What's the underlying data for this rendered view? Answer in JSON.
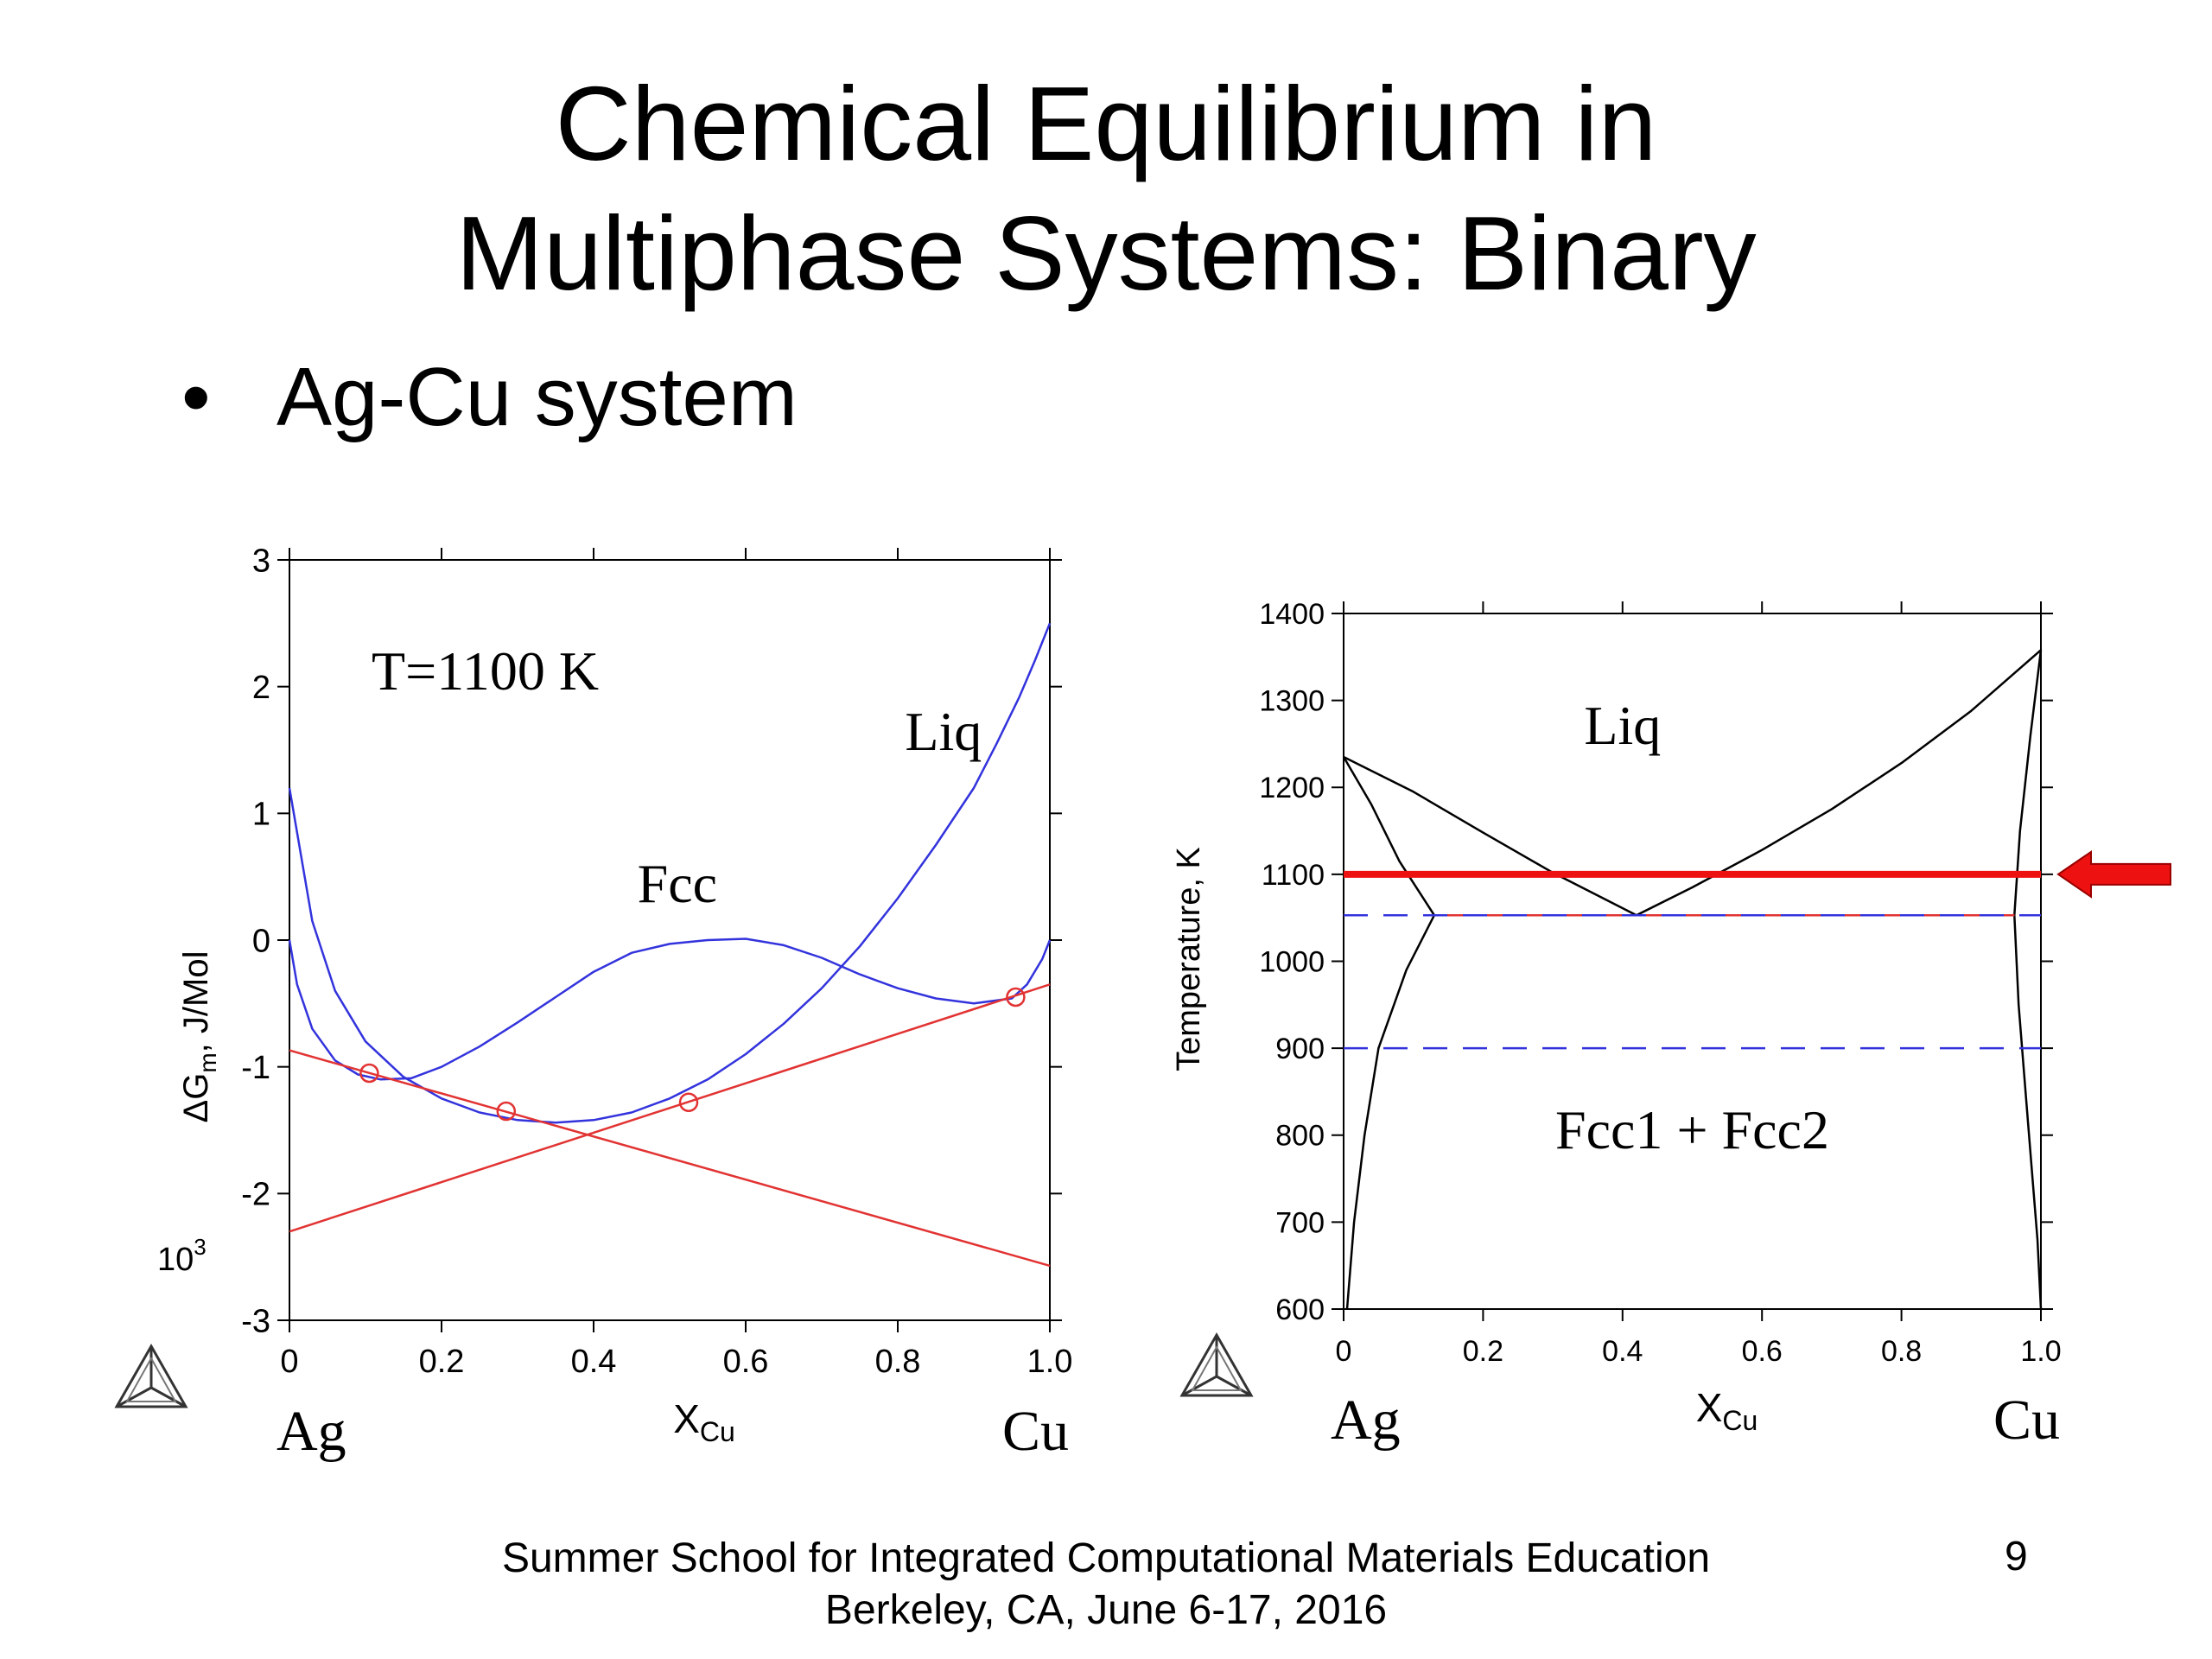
{
  "slide": {
    "title_line1": "Chemical Equilibrium in",
    "title_line2": "Multiphase Systems: Binary",
    "bullet_marker": "•",
    "bullet": "Ag-Cu system",
    "footer_line1": "Summer School for Integrated Computational Materials Education",
    "footer_line2": "Berkeley, CA, June 6-17, 2016",
    "page_number": "9"
  },
  "chart_data": [
    {
      "type": "line",
      "annotation": "T=1100 K",
      "ylabel": "ΔGm, J/Mol",
      "ylabel_main": "ΔG",
      "ylabel_sub": "m",
      "ylabel_rest": ", J/Mol",
      "yscale_label": "10",
      "yscale_exp": "3",
      "xlabel": "X",
      "xlabel_sub": "Cu",
      "left_element": "Ag",
      "right_element": "Cu",
      "xlim": [
        0,
        1.0
      ],
      "ylim": [
        -3,
        3
      ],
      "xticks": [
        "0",
        "0.2",
        "0.4",
        "0.6",
        "0.8",
        "1.0"
      ],
      "yticks": [
        "3",
        "2",
        "1",
        "0",
        "-1",
        "-2",
        "-3"
      ],
      "series": [
        {
          "name": "Liq",
          "color": "#3333dd",
          "x": [
            0,
            0.03,
            0.06,
            0.1,
            0.15,
            0.2,
            0.25,
            0.3,
            0.35,
            0.4,
            0.45,
            0.5,
            0.55,
            0.6,
            0.65,
            0.7,
            0.75,
            0.8,
            0.85,
            0.9,
            0.93,
            0.96,
            0.98,
            1.0
          ],
          "y": [
            1.2,
            0.15,
            -0.4,
            -0.8,
            -1.08,
            -1.25,
            -1.36,
            -1.42,
            -1.44,
            -1.42,
            -1.36,
            -1.25,
            -1.1,
            -0.9,
            -0.66,
            -0.38,
            -0.05,
            0.33,
            0.75,
            1.2,
            1.55,
            1.92,
            2.2,
            2.5
          ]
        },
        {
          "name": "Fcc",
          "color": "#3333dd",
          "x": [
            0,
            0.01,
            0.03,
            0.06,
            0.09,
            0.12,
            0.16,
            0.2,
            0.25,
            0.3,
            0.35,
            0.4,
            0.45,
            0.5,
            0.55,
            0.6,
            0.65,
            0.7,
            0.75,
            0.8,
            0.85,
            0.9,
            0.95,
            0.97,
            0.99,
            1.0
          ],
          "y": [
            0,
            -0.35,
            -0.7,
            -0.95,
            -1.06,
            -1.1,
            -1.09,
            -1.0,
            -0.84,
            -0.65,
            -0.45,
            -0.25,
            -0.1,
            -0.03,
            0.0,
            0.01,
            -0.04,
            -0.14,
            -0.27,
            -0.38,
            -0.46,
            -0.5,
            -0.46,
            -0.35,
            -0.15,
            0
          ]
        },
        {
          "name": "tangent-1",
          "color": "#e23333",
          "x": [
            0,
            1.0
          ],
          "y": [
            -0.87,
            -2.57
          ]
        },
        {
          "name": "tangent-2",
          "color": "#e23333",
          "x": [
            0,
            1.0
          ],
          "y": [
            -2.3,
            -0.35
          ]
        }
      ],
      "markers": {
        "color": "#e23333",
        "x": [
          0.105,
          0.285,
          0.525,
          0.955
        ],
        "y": [
          -1.05,
          -1.35,
          -1.28,
          -0.45
        ]
      },
      "labels": [
        {
          "text": "Liq",
          "x": 0.86,
          "y": 1.5
        },
        {
          "text": "Fcc",
          "x": 0.51,
          "y": 0.3
        }
      ]
    },
    {
      "type": "line",
      "ylabel": "Temperature, K",
      "xlabel": "X",
      "xlabel_sub": "Cu",
      "left_element": "Ag",
      "right_element": "Cu",
      "xlim": [
        0,
        1.0
      ],
      "ylim": [
        600,
        1400
      ],
      "xticks": [
        "0",
        "0.2",
        "0.4",
        "0.6",
        "0.8",
        "1.0"
      ],
      "yticks": [
        "1400",
        "1300",
        "1200",
        "1100",
        "1000",
        "900",
        "800",
        "700",
        "600"
      ],
      "series": [
        {
          "name": "liquidus-Ag",
          "color": "#000000",
          "x": [
            0,
            0.1,
            0.2,
            0.3,
            0.42
          ],
          "y": [
            1235,
            1195,
            1148,
            1102,
            1053
          ]
        },
        {
          "name": "liquidus-Cu",
          "color": "#000000",
          "x": [
            0.42,
            0.5,
            0.6,
            0.7,
            0.8,
            0.9,
            1.0
          ],
          "y": [
            1053,
            1085,
            1128,
            1175,
            1228,
            1288,
            1358
          ]
        },
        {
          "name": "solidus-Ag",
          "color": "#000000",
          "x": [
            0,
            0.04,
            0.08,
            0.13
          ],
          "y": [
            1235,
            1180,
            1115,
            1053
          ]
        },
        {
          "name": "solvus-Ag",
          "color": "#000000",
          "x": [
            0.13,
            0.09,
            0.05,
            0.03,
            0.015,
            0.005
          ],
          "y": [
            1053,
            990,
            900,
            800,
            700,
            600
          ]
        },
        {
          "name": "solidus-Cu",
          "color": "#000000",
          "x": [
            1.0,
            0.985,
            0.97,
            0.962
          ],
          "y": [
            1358,
            1260,
            1150,
            1053
          ]
        },
        {
          "name": "solvus-Cu",
          "color": "#000000",
          "x": [
            0.962,
            0.968,
            0.978,
            0.988,
            0.995,
            1.0
          ],
          "y": [
            1053,
            950,
            850,
            750,
            680,
            600
          ]
        },
        {
          "name": "eutectic",
          "color": "#e23333",
          "x": [
            0.13,
            0.962
          ],
          "y": [
            1053,
            1053
          ]
        },
        {
          "name": "T=1100",
          "color": "#ee1111",
          "x": [
            0,
            1.0
          ],
          "y": [
            1100,
            1100
          ]
        },
        {
          "name": "dash-1053",
          "color": "#3333dd",
          "x": [
            0,
            1.0
          ],
          "y": [
            1053,
            1053
          ]
        },
        {
          "name": "dash-900",
          "color": "#3333dd",
          "x": [
            0,
            1.0
          ],
          "y": [
            900,
            900
          ]
        }
      ],
      "labels": [
        {
          "text": "Liq",
          "x": 0.4,
          "y": 1250
        },
        {
          "text": "Fcc1 + Fcc2",
          "x": 0.5,
          "y": 785
        }
      ],
      "arrow": {
        "at_y": 1100,
        "color": "#ee1111"
      }
    }
  ]
}
